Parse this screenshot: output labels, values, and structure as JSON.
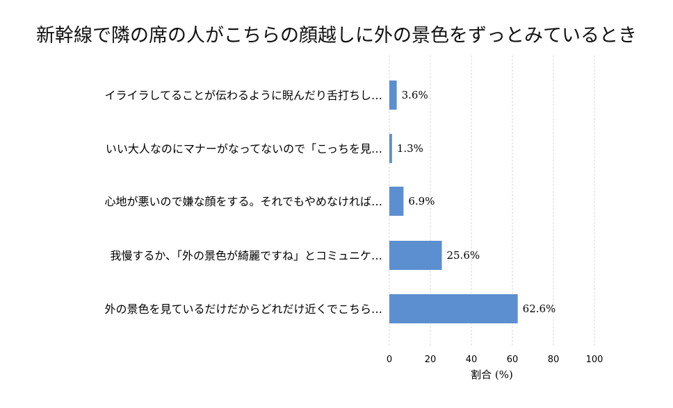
{
  "chart_data": {
    "type": "bar",
    "orientation": "horizontal",
    "title": "新幹線で隣の席の人がこちらの顔越しに外の景色をずっとみているとき",
    "xlabel": "割合 (%)",
    "ylabel": "",
    "xlim": [
      0,
      100
    ],
    "xticks": [
      "0",
      "20",
      "40",
      "60",
      "80",
      "100"
    ],
    "grid": "vertical",
    "bar_color": "#5b8fd0",
    "categories": [
      "イライラしてることが伝わるように睨んだり舌打ちし…",
      "いい大人なのにマナーがなってないので「こっちを見…",
      "心地が悪いので嫌な顔をする。それでもやめなければ…",
      "我慢するか、「外の景色が綺麗ですね」とコミュニケ…",
      "外の景色を見ているだけだからどれだけ近くでこちら…"
    ],
    "values": [
      3.6,
      1.3,
      6.9,
      25.6,
      62.6
    ],
    "value_labels": [
      "3.6%",
      "1.3%",
      "6.9%",
      "25.6%",
      "62.6%"
    ]
  }
}
